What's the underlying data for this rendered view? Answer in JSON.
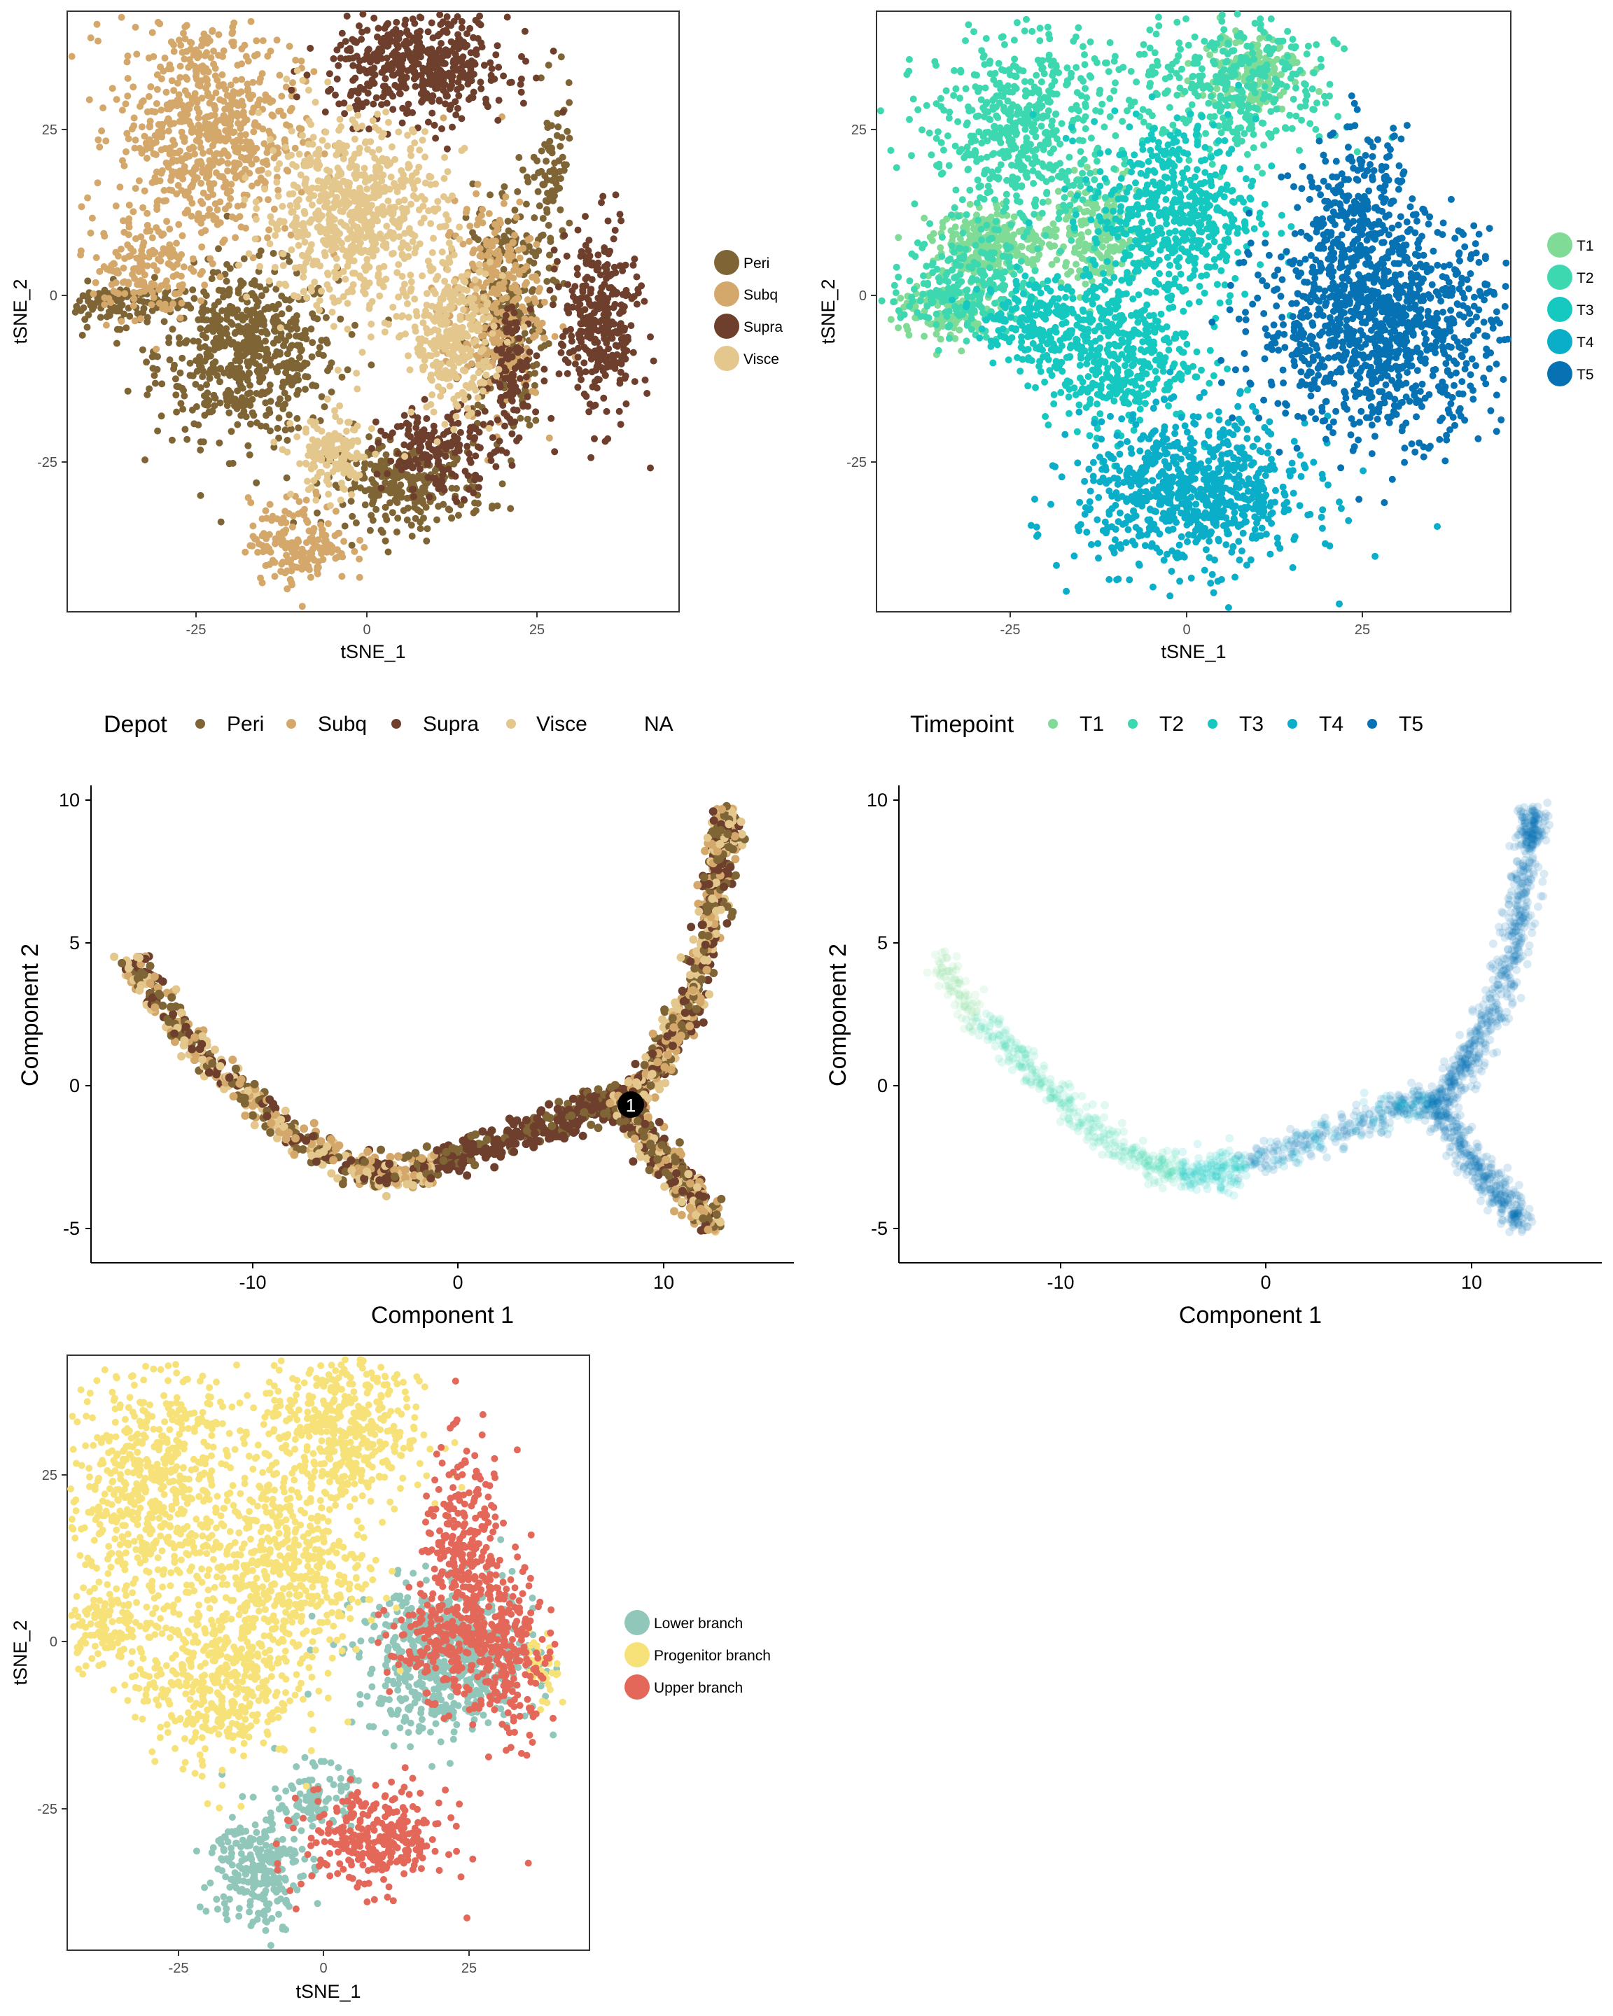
{
  "chart_data": [
    {
      "id": "depot_tsne",
      "type": "scatter",
      "xlabel": "tSNE_1",
      "ylabel": "tSNE_2",
      "xlim": [
        -46,
        46
      ],
      "ylim": [
        -47,
        39
      ],
      "xticks": [
        "-25",
        "0",
        "25"
      ],
      "yticks": [
        "-25",
        "0",
        "25"
      ],
      "grid": false,
      "legend_position": "right",
      "series": [
        {
          "name": "Peri",
          "color": "#7f6535",
          "clusters": [
            [
              -19,
              -10,
              9,
              8,
              600
            ],
            [
              20,
              -3,
              4,
              12,
              260
            ],
            [
              5,
              -29,
              8,
              4,
              260
            ],
            [
              -38,
              -3,
              6,
              2,
              120
            ],
            [
              27,
              15,
              2,
              8,
              80
            ]
          ]
        },
        {
          "name": "Subq",
          "color": "#d4a76a",
          "clusters": [
            [
              -25,
              22,
              9,
              11,
              700
            ],
            [
              18,
              -3,
              5,
              10,
              300
            ],
            [
              -11,
              -37,
              5,
              4,
              180
            ],
            [
              -35,
              2,
              5,
              5,
              150
            ]
          ]
        },
        {
          "name": "Supra",
          "color": "#6d3f2c",
          "clusters": [
            [
              7,
              31,
              9,
              5,
              500
            ],
            [
              34,
              -6,
              4,
              9,
              330
            ],
            [
              10,
              -24,
              6,
              4,
              180
            ],
            [
              21,
              -12,
              2,
              6,
              100
            ]
          ]
        },
        {
          "name": "Visce",
          "color": "#e4c78d",
          "clusters": [
            [
              -3,
              10,
              9,
              9,
              700
            ],
            [
              12,
              -8,
              4,
              7,
              300
            ],
            [
              -6,
              -25,
              4,
              4,
              150
            ]
          ]
        }
      ],
      "panel_legend": [
        "Peri",
        "Subq",
        "Supra",
        "Visce"
      ]
    },
    {
      "id": "timepoint_tsne",
      "type": "scatter",
      "xlabel": "tSNE_1",
      "ylabel": "tSNE_2",
      "xlim": [
        -46,
        46
      ],
      "ylim": [
        -47,
        39
      ],
      "xticks": [
        "-25",
        "0",
        "25"
      ],
      "yticks": [
        "-25",
        "0",
        "25"
      ],
      "grid": false,
      "legend_position": "right",
      "series": [
        {
          "name": "T1",
          "color": "#7fdb95",
          "clusters": [
            [
              -29,
              6,
              6,
              3,
              250
            ],
            [
              -14,
              7,
              4,
              5,
              180
            ],
            [
              8,
              31,
              5,
              4,
              150
            ],
            [
              -36,
              -4,
              5,
              3,
              120
            ]
          ]
        },
        {
          "name": "T2",
          "color": "#3ed8b0",
          "clusters": [
            [
              -25,
              22,
              9,
              10,
              550
            ],
            [
              -33,
              0,
              6,
              5,
              220
            ],
            [
              6,
              28,
              10,
              7,
              350
            ]
          ]
        },
        {
          "name": "T3",
          "color": "#15c8c0",
          "clusters": [
            [
              -3,
              10,
              8,
              9,
              550
            ],
            [
              -12,
              -10,
              8,
              7,
              450
            ],
            [
              -24,
              -5,
              5,
              4,
              150
            ]
          ]
        },
        {
          "name": "T4",
          "color": "#0aaec8",
          "clusters": [
            [
              0,
              -30,
              11,
              7,
              800
            ]
          ]
        },
        {
          "name": "T5",
          "color": "#0672b3",
          "clusters": [
            [
              27,
              -6,
              12,
              10,
              1100
            ],
            [
              24,
              10,
              5,
              8,
              250
            ]
          ]
        }
      ],
      "panel_legend": [
        "T1",
        "T2",
        "T3",
        "T4",
        "T5"
      ]
    },
    {
      "id": "depot_trajectory",
      "type": "scatter",
      "xlabel": "Component 1",
      "ylabel": "Component 2",
      "xlim": [
        -17.8,
        16.5
      ],
      "ylim": [
        -6.2,
        10.5
      ],
      "xticks": [
        -10,
        0,
        10
      ],
      "yticks": [
        -5,
        0,
        5,
        10
      ],
      "grid": false,
      "branch_point_label": "1",
      "branch_point": [
        8.4,
        -0.7
      ],
      "legend_title": "Depot",
      "legend_position": "top",
      "legend_items": [
        "Peri",
        "Subq",
        "Supra",
        "Visce",
        "NA"
      ]
    },
    {
      "id": "timepoint_trajectory",
      "type": "scatter",
      "xlabel": "Component 1",
      "ylabel": "Component 2",
      "xlim": [
        -17.8,
        16.5
      ],
      "ylim": [
        -6.2,
        10.5
      ],
      "xticks": [
        -10,
        0,
        10
      ],
      "yticks": [
        -5,
        0,
        5,
        10
      ],
      "grid": false,
      "legend_title": "Timepoint",
      "legend_position": "top",
      "legend_items": [
        "T1",
        "T2",
        "T3",
        "T4",
        "T5"
      ]
    },
    {
      "id": "branch_tsne",
      "type": "scatter",
      "xlabel": "tSNE_1",
      "ylabel": "tSNE_2",
      "xlim": [
        -42,
        46
      ],
      "ylim": [
        -47,
        39
      ],
      "xticks": [
        "-25",
        "0",
        "25"
      ],
      "yticks": [
        "-25",
        "0",
        "25"
      ],
      "grid": false,
      "legend_position": "right",
      "series": [
        {
          "name": "Lower branch",
          "color": "#91c6ba",
          "clusters": [
            [
              22,
              -5,
              10,
              7,
              600
            ],
            [
              -10,
              -35,
              5,
              6,
              250
            ],
            [
              0,
              -25,
              4,
              3,
              100
            ]
          ]
        },
        {
          "name": "Progenitor branch",
          "color": "#f7e27a",
          "clusters": [
            [
              -28,
              20,
              10,
              12,
              650
            ],
            [
              4,
              28,
              9,
              8,
              500
            ],
            [
              -5,
              8,
              9,
              9,
              450
            ],
            [
              -17,
              -8,
              9,
              8,
              450
            ],
            [
              -36,
              0,
              4,
              4,
              120
            ],
            [
              38,
              -7,
              2,
              4,
              40
            ]
          ]
        },
        {
          "name": "Upper branch",
          "color": "#e3685a",
          "clusters": [
            [
              25,
              8,
              5,
              11,
              350
            ],
            [
              10,
              -31,
              8,
              5,
              300
            ],
            [
              24,
              -3,
              8,
              5,
              200
            ],
            [
              33,
              -5,
              4,
              8,
              150
            ]
          ]
        }
      ],
      "panel_legend": [
        "Lower branch",
        "Progenitor branch",
        "Upper branch"
      ]
    }
  ]
}
